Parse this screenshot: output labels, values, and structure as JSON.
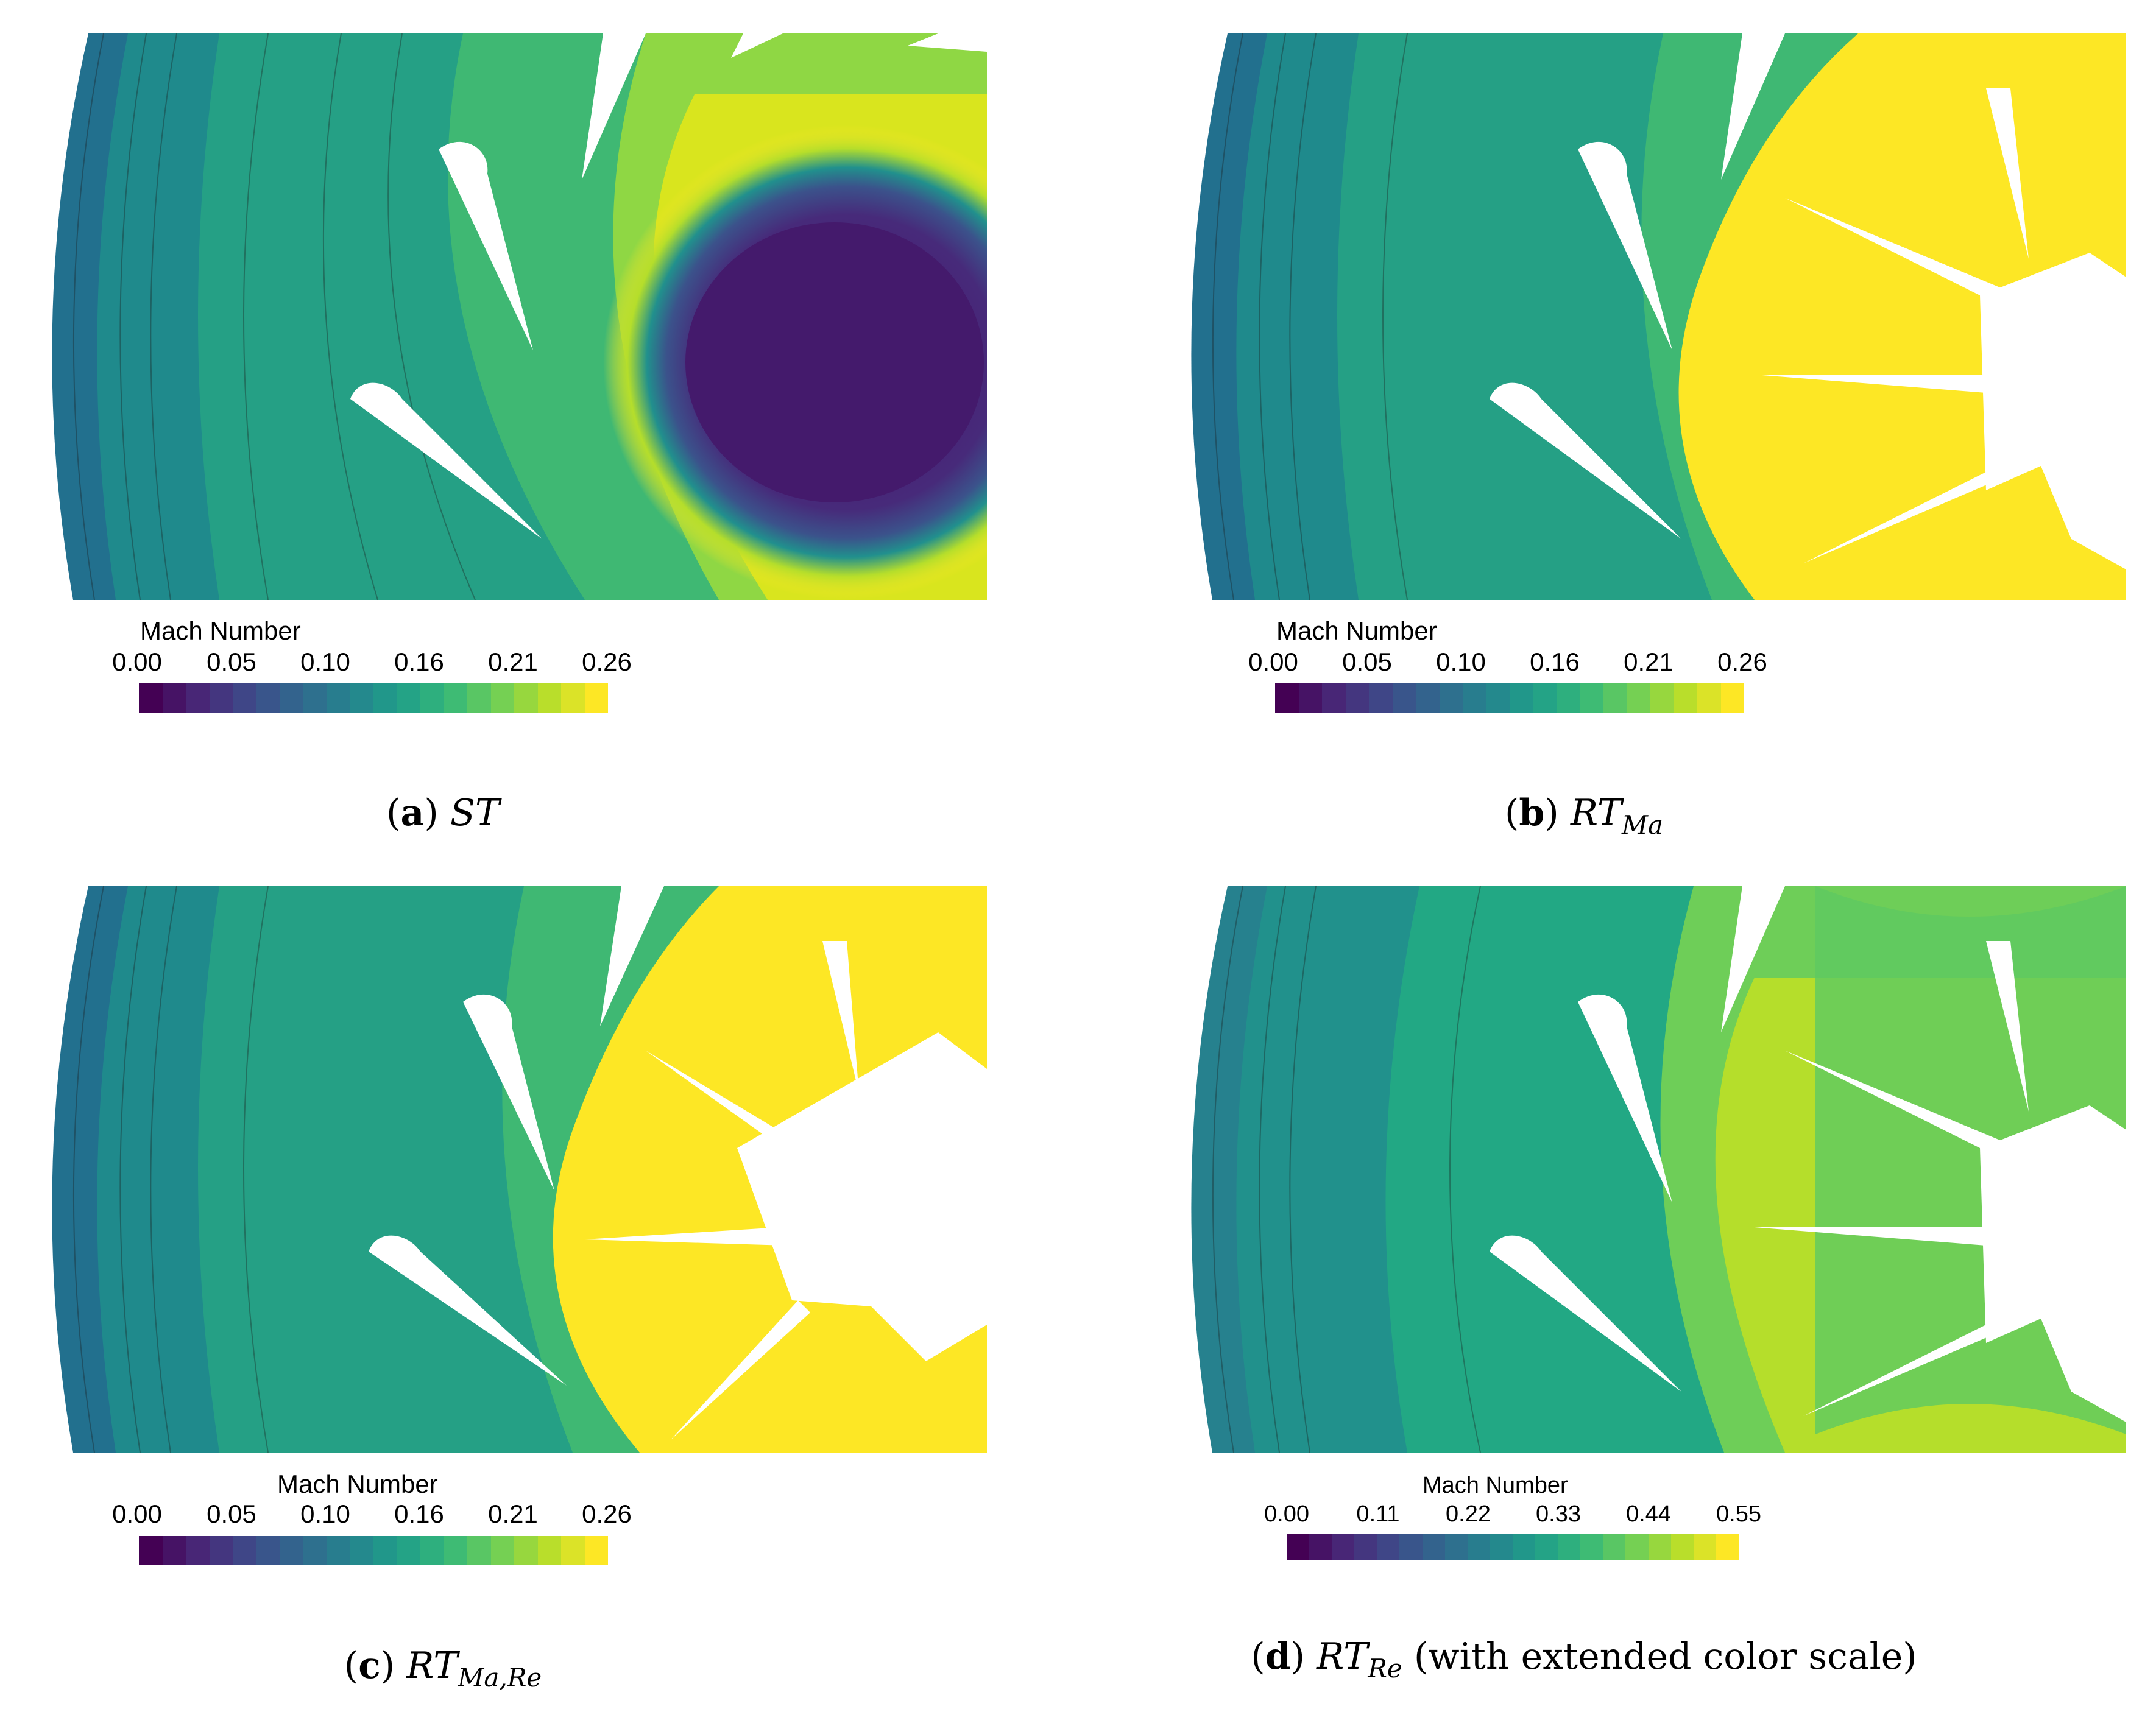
{
  "colors": {
    "viridis": [
      "#440154",
      "#482878",
      "#3e4a89",
      "#31688e",
      "#26828e",
      "#1f9e89",
      "#35b779",
      "#6ece58",
      "#b5de2b",
      "#fde725"
    ],
    "contour_line": "#1a1a1a"
  },
  "panels": [
    {
      "id": "a",
      "colorbar": {
        "title": "Mach Number",
        "ticks": [
          "0.00",
          "0.05",
          "0.10",
          "0.16",
          "0.21",
          "0.26"
        ]
      },
      "caption": {
        "letter": "a",
        "symbol": "ST",
        "sub": "",
        "suffix": ""
      },
      "rotor_state": "stationary-vortex"
    },
    {
      "id": "b",
      "colorbar": {
        "title": "Mach Number",
        "ticks": [
          "0.00",
          "0.05",
          "0.10",
          "0.16",
          "0.21",
          "0.26"
        ]
      },
      "caption": {
        "letter": "b",
        "symbol": "RT",
        "sub": "Ma",
        "suffix": ""
      },
      "rotor_state": "rotating-saturated"
    },
    {
      "id": "c",
      "colorbar": {
        "title": "Mach Number",
        "ticks": [
          "0.00",
          "0.05",
          "0.10",
          "0.16",
          "0.21",
          "0.26"
        ]
      },
      "caption": {
        "letter": "c",
        "symbol": "RT",
        "sub": "Ma,Re",
        "suffix": ""
      },
      "rotor_state": "rotating-saturated"
    },
    {
      "id": "d",
      "colorbar": {
        "title": "Mach Number",
        "ticks": [
          "0.00",
          "0.11",
          "0.22",
          "0.33",
          "0.44",
          "0.55"
        ]
      },
      "caption": {
        "letter": "d",
        "symbol": "RT",
        "sub": "Re",
        "suffix": " (with extended color scale)"
      },
      "rotor_state": "rotating-extended"
    }
  ]
}
